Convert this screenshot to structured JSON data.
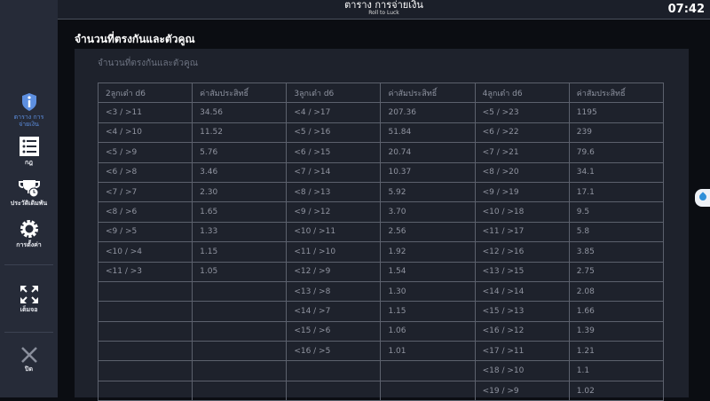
{
  "topbar": {
    "title": "ตาราง การจ่ายเงิน",
    "subtitle": "Roll to Luck",
    "clock": "07:42"
  },
  "sidebar": {
    "items": [
      {
        "label": "ตาราง การจ่ายเงิน",
        "icon": "info-shield-icon",
        "active": true
      },
      {
        "label": "กฎ",
        "icon": "list-icon"
      },
      {
        "label": "ประวัติเดิมพัน",
        "icon": "trophy-clock-icon"
      },
      {
        "label": "การตั้งค่า",
        "icon": "gear-icon"
      },
      {
        "label": "เต็มจอ",
        "icon": "fullscreen-icon"
      },
      {
        "label": "ปิด",
        "icon": "close-icon"
      }
    ]
  },
  "main": {
    "heading": "จำนวนที่ตรงกันและตัวคูณ",
    "panel_title": "จำนวนที่ตรงกันและตัวคูณ",
    "table": {
      "headers": [
        "2ลูกเต๋า d6",
        "ค่าสัมประสิทธิ์",
        "3ลูกเต๋า d6",
        "ค่าสัมประสิทธิ์",
        "4ลูกเต๋า d6",
        "ค่าสัมประสิทธิ์"
      ],
      "rows": [
        [
          "<3 / >11",
          "34.56",
          "<4 / >17",
          "207.36",
          "<5 / >23",
          "1195"
        ],
        [
          "<4 / >10",
          "11.52",
          "<5 / >16",
          "51.84",
          "<6 / >22",
          "239"
        ],
        [
          "<5 / >9",
          "5.76",
          "<6 / >15",
          "20.74",
          "<7 / >21",
          "79.6"
        ],
        [
          "<6 / >8",
          "3.46",
          "<7 / >14",
          "10.37",
          "<8 / >20",
          "34.1"
        ],
        [
          "<7 / >7",
          "2.30",
          "<8 / >13",
          "5.92",
          "<9 / >19",
          "17.1"
        ],
        [
          "<8 / >6",
          "1.65",
          "<9 / >12",
          "3.70",
          "<10 / >18",
          "9.5"
        ],
        [
          "<9 / >5",
          "1.33",
          "<10 / >11",
          "2.56",
          "<11 / >17",
          "5.8"
        ],
        [
          "<10 / >4",
          "1.15",
          "<11 / >10",
          "1.92",
          "<12 / >16",
          "3.85"
        ],
        [
          "<11 / >3",
          "1.05",
          "<12 / >9",
          "1.54",
          "<13 / >15",
          "2.75"
        ],
        [
          "",
          "",
          "<13 / >8",
          "1.30",
          "<14 / >14",
          "2.08"
        ],
        [
          "",
          "",
          "<14 / >7",
          "1.15",
          "<15 / >13",
          "1.66"
        ],
        [
          "",
          "",
          "<15 / >6",
          "1.06",
          "<16 / >12",
          "1.39"
        ],
        [
          "",
          "",
          "<16 / >5",
          "1.01",
          "<17 / >11",
          "1.21"
        ],
        [
          "",
          "",
          "",
          "",
          "<18 / >10",
          "1.1"
        ],
        [
          "",
          "",
          "",
          "",
          "<19 / >9",
          "1.02"
        ]
      ]
    }
  },
  "colors": {
    "accent": "#5d8fe0",
    "sidebar": "#262b38",
    "panel": "#1e222c"
  }
}
